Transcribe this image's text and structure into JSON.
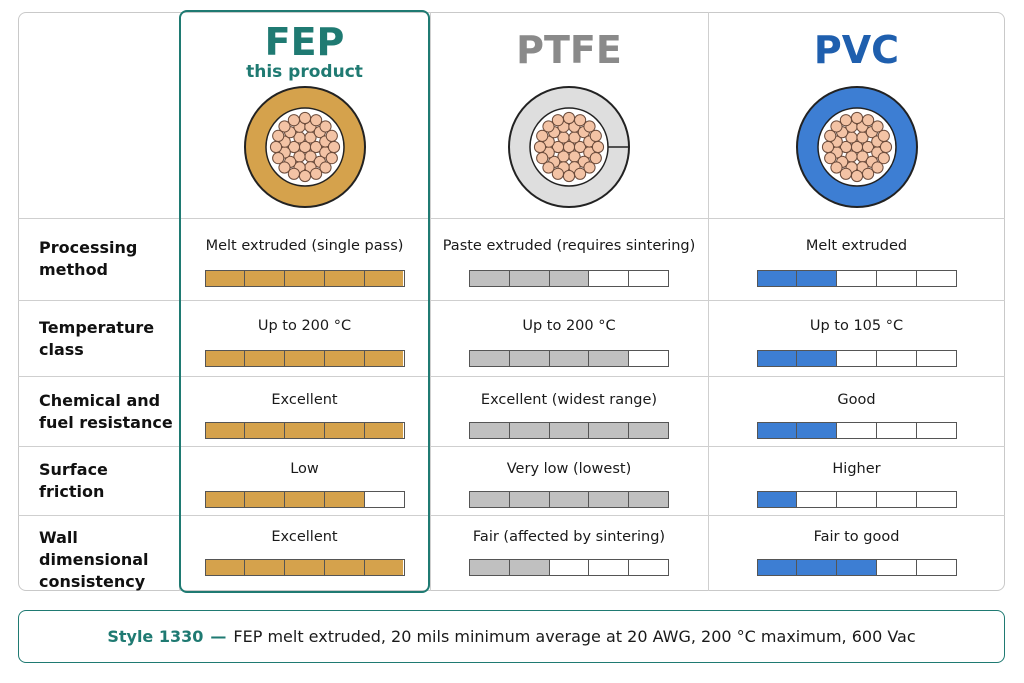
{
  "colors": {
    "fep": "#d5a24c",
    "ptfe": "#c0c0c0",
    "pvc": "#3d7ed3",
    "accent": "#1f7a72"
  },
  "columns": [
    {
      "name": "FEP",
      "sub": "this product",
      "name_color": "#1f7a72",
      "fill": "#d5a24c",
      "jacket": "#d5a24c",
      "icon": "fep-wire-cross-section-icon"
    },
    {
      "name": "PTFE",
      "sub": "",
      "name_color": "#8a8a8a",
      "fill": "#c0c0c0",
      "jacket": "#dedede",
      "icon": "ptfe-wire-cross-section-icon"
    },
    {
      "name": "PVC",
      "sub": "",
      "name_color": "#1f5fae",
      "fill": "#3d7ed3",
      "jacket": "#3d7ed3",
      "icon": "pvc-wire-cross-section-icon"
    }
  ],
  "rows": [
    {
      "label": "Processing method",
      "cells": [
        {
          "text": "Melt extruded (single pass)",
          "rating": 5
        },
        {
          "text": "Paste extruded (requires sintering)",
          "rating": 3
        },
        {
          "text": "Melt extruded",
          "rating": 2
        }
      ]
    },
    {
      "label": "Temperature class",
      "cells": [
        {
          "text": "Up to 200 °C",
          "rating": 5
        },
        {
          "text": "Up to 200 °C",
          "rating": 4
        },
        {
          "text": "Up to 105 °C",
          "rating": 2
        }
      ]
    },
    {
      "label": "Chemical and fuel resistance",
      "cells": [
        {
          "text": "Excellent",
          "rating": 5
        },
        {
          "text": "Excellent (widest range)",
          "rating": 5
        },
        {
          "text": "Good",
          "rating": 2
        }
      ]
    },
    {
      "label": "Surface friction",
      "cells": [
        {
          "text": "Low",
          "rating": 4
        },
        {
          "text": "Very low (lowest)",
          "rating": 5
        },
        {
          "text": "Higher",
          "rating": 1
        }
      ]
    },
    {
      "label": "Wall dimensional consistency",
      "cells": [
        {
          "text": "Excellent",
          "rating": 5
        },
        {
          "text": "Fair (affected by sintering)",
          "rating": 2
        },
        {
          "text": "Fair to good",
          "rating": 3
        }
      ]
    }
  ],
  "footer": {
    "lead": "Style 1330",
    "dash": "—",
    "text": "FEP melt extruded, 20 mils minimum average at 20 AWG, 200 °C maximum, 600 Vac"
  }
}
